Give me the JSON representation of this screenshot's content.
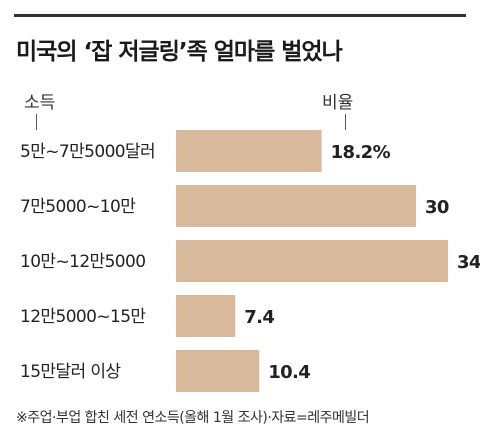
{
  "title": "미국의 ‘잡 저글링’족 얼마를 벌었나",
  "headers": {
    "left": "소득",
    "right": "비율"
  },
  "colors": {
    "bar": "#d9b99b",
    "text": "#222222",
    "rule": "#333333"
  },
  "chart_data": {
    "type": "bar",
    "orientation": "horizontal",
    "categories": [
      "5만~7만5000달러",
      "7만5000~10만",
      "10만~12만5000",
      "12만5000~15만",
      "15만달러 이상"
    ],
    "values": [
      18.2,
      30,
      34,
      7.4,
      10.4
    ],
    "value_labels": [
      "18.2%",
      "30",
      "34",
      "7.4",
      "10.4"
    ],
    "title": "미국의 ‘잡 저글링’족 얼마를 벌었나",
    "xlabel": "비율",
    "ylabel": "소득"
  },
  "footnote": "※주업·부업 합친 세전 연소득(올해 1월 조사)·자료=레주메빌더"
}
